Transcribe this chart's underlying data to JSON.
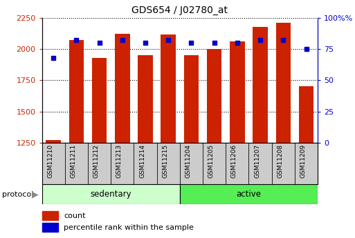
{
  "title": "GDS654 / J02780_at",
  "samples": [
    "GSM11210",
    "GSM11211",
    "GSM11212",
    "GSM11213",
    "GSM11214",
    "GSM11215",
    "GSM11204",
    "GSM11205",
    "GSM11206",
    "GSM11207",
    "GSM11208",
    "GSM11209"
  ],
  "counts": [
    1270,
    2075,
    1930,
    2120,
    1950,
    2115,
    1950,
    2000,
    2060,
    2175,
    2210,
    1700
  ],
  "percentiles": [
    68,
    82,
    80,
    82,
    80,
    82,
    80,
    80,
    80,
    82,
    82,
    75
  ],
  "sedentary_count": 6,
  "active_count": 6,
  "ylim_left": [
    1250,
    2250
  ],
  "ylim_right": [
    0,
    100
  ],
  "yticks_left": [
    1250,
    1500,
    1750,
    2000,
    2250
  ],
  "yticks_right": [
    0,
    25,
    50,
    75,
    100
  ],
  "bar_color": "#cc2200",
  "marker_color": "#0000cc",
  "sedentary_color": "#ccffcc",
  "active_color": "#55ee55",
  "sample_box_color": "#cccccc",
  "label_color_left": "#cc2200",
  "label_color_right": "#0000cc",
  "legend_count_label": "count",
  "legend_pct_label": "percentile rank within the sample",
  "protocol_label": "protocol",
  "sedentary_label": "sedentary",
  "active_label": "active"
}
